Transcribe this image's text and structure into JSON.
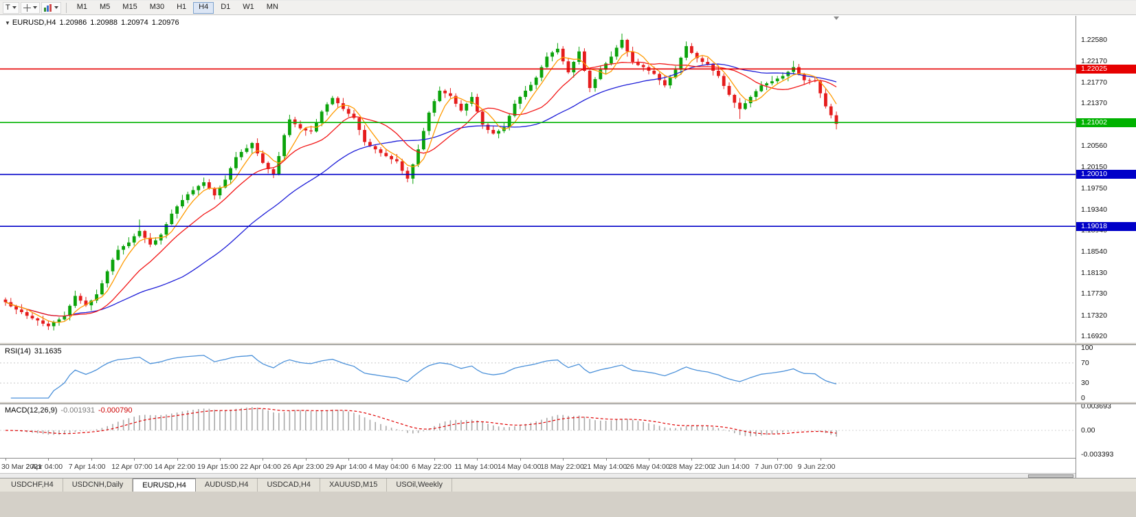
{
  "icons": {
    "collapse_triangle": "▼"
  },
  "toolbar": {
    "t_label": "T",
    "timeframes": [
      "M1",
      "M5",
      "M15",
      "M30",
      "H1",
      "H4",
      "D1",
      "W1",
      "MN"
    ],
    "active_timeframe": "H4"
  },
  "chart_header": {
    "symbol": "EURUSD,H4",
    "open": "1.20986",
    "high": "1.20988",
    "low": "1.20974",
    "close": "1.20976"
  },
  "rsi_header": {
    "label": "RSI(14)",
    "value": "31.1635"
  },
  "macd_header": {
    "label": "MACD(12,26,9)",
    "main_value": "-0.001931",
    "signal_value": "-0.000790"
  },
  "tabs": {
    "items": [
      {
        "label": "USDCHF,H4"
      },
      {
        "label": "USDCNH,Daily"
      },
      {
        "label": "EURUSD,H4"
      },
      {
        "label": "AUDUSD,H4"
      },
      {
        "label": "USDCAD,H4"
      },
      {
        "label": "XAUUSD,M15"
      },
      {
        "label": "USOil,Weekly"
      }
    ],
    "active": "EURUSD,H4"
  },
  "chart_data": {
    "type": "candlestick",
    "symbol": "EURUSD",
    "timeframe": "H4",
    "price_axis": {
      "min": 1.1692,
      "max": 1.2258,
      "labels": [
        "1.22580",
        "1.22170",
        "1.21770",
        "1.21370",
        "1.20560",
        "1.20150",
        "1.19750",
        "1.19340",
        "1.18940",
        "1.18540",
        "1.18130",
        "1.17730",
        "1.17320",
        "1.16920"
      ]
    },
    "hlines": [
      {
        "price": 1.22025,
        "label": "1.22025",
        "color": "#e60000"
      },
      {
        "price": 1.21002,
        "label": "1.21002",
        "color": "#00b200"
      },
      {
        "price": 1.2001,
        "label": "1.20010",
        "color": "#0000c8"
      },
      {
        "price": 1.19018,
        "label": "1.19018",
        "color": "#0000c8"
      }
    ],
    "candles": {
      "first_open": 1.1762,
      "closes": [
        1.1757,
        1.1749,
        1.1743,
        1.1738,
        1.1731,
        1.1726,
        1.1722,
        1.1716,
        1.1711,
        1.1719,
        1.1724,
        1.1731,
        1.175,
        1.1769,
        1.176,
        1.1751,
        1.176,
        1.1772,
        1.1793,
        1.1816,
        1.1838,
        1.1857,
        1.1864,
        1.1871,
        1.1883,
        1.1893,
        1.188,
        1.1867,
        1.1875,
        1.1886,
        1.1906,
        1.1926,
        1.194,
        1.1952,
        1.1963,
        1.1971,
        1.1979,
        1.1986,
        1.1974,
        1.1961,
        1.1976,
        1.1991,
        1.2013,
        1.2034,
        1.2044,
        1.2051,
        1.2061,
        1.2041,
        1.2023,
        1.2011,
        1.2001,
        1.2036,
        1.2076,
        1.2106,
        1.2097,
        1.2089,
        1.2085,
        1.2083,
        1.2101,
        1.2121,
        1.2135,
        1.2147,
        1.2137,
        1.2126,
        1.2117,
        1.2109,
        1.2086,
        1.2063,
        1.2055,
        1.2049,
        1.2042,
        1.2036,
        1.203,
        1.2026,
        1.2008,
        1.1993,
        1.202,
        1.2049,
        1.2084,
        1.2119,
        1.2141,
        1.2161,
        1.2156,
        1.2151,
        1.2136,
        1.2123,
        1.2136,
        1.2149,
        1.2121,
        1.2096,
        1.2086,
        1.2079,
        1.2084,
        1.2091,
        1.2113,
        1.2136,
        1.2149,
        1.2161,
        1.2172,
        1.2186,
        1.2206,
        1.2226,
        1.2234,
        1.2241,
        1.2217,
        1.2196,
        1.2216,
        1.2236,
        1.2199,
        1.2166,
        1.2183,
        1.2201,
        1.2213,
        1.2226,
        1.2243,
        1.2258,
        1.2236,
        1.2216,
        1.221,
        1.2206,
        1.2199,
        1.2193,
        1.2181,
        1.2171,
        1.2186,
        1.2201,
        1.2224,
        1.2246,
        1.2233,
        1.2223,
        1.2216,
        1.2211,
        1.2199,
        1.2189,
        1.217,
        1.2153,
        1.2138,
        1.2126,
        1.2137,
        1.2149,
        1.216,
        1.2171,
        1.2175,
        1.2179,
        1.2184,
        1.2189,
        1.2197,
        1.2206,
        1.2192,
        1.2181,
        1.218,
        1.2179,
        1.2156,
        1.2131,
        1.2114,
        1.20976
      ],
      "wick_high_pattern": [
        0.0004,
        0.0008,
        0.0003,
        0.001,
        0.0005,
        0.0007,
        0.0002,
        0.0009,
        0.0006,
        0.0003
      ],
      "wick_low_pattern": [
        0.0007,
        0.0002,
        0.0009,
        0.0004,
        0.0006,
        0.0003,
        0.001,
        0.0005,
        0.0002,
        0.0008
      ],
      "high_overrides": [
        [
          25,
          1.1915
        ],
        [
          53,
          1.2115
        ],
        [
          61,
          1.2151
        ],
        [
          103,
          1.2252
        ],
        [
          115,
          1.227
        ],
        [
          147,
          1.2218
        ]
      ],
      "low_overrides": [
        [
          8,
          1.1704
        ],
        [
          9,
          1.1703
        ],
        [
          67,
          1.2056
        ],
        [
          75,
          1.1986
        ],
        [
          137,
          1.2107
        ],
        [
          155,
          1.2087
        ]
      ]
    },
    "moving_averages": [
      {
        "period": 34,
        "color": "#1d1dd8"
      },
      {
        "period": 13,
        "color": "#f21616"
      },
      {
        "period": 5,
        "color": "#ff9a00"
      }
    ],
    "rsi": {
      "period": 14,
      "levels": [
        100,
        70,
        30,
        0
      ],
      "color": "#4a90d9"
    },
    "macd": {
      "fast": 12,
      "slow": 26,
      "signal": 9,
      "axis_labels": [
        "0.003693",
        "0.00",
        "-0.003393"
      ],
      "histogram_color": "#a9a9a9",
      "signal_color": "#e00000"
    },
    "time_labels": [
      "30 Mar 2021",
      "2 Apr 04:00",
      "7 Apr 14:00",
      "12 Apr 07:00",
      "14 Apr 22:00",
      "19 Apr 15:00",
      "22 Apr 04:00",
      "26 Apr 23:00",
      "29 Apr 14:00",
      "4 May 04:00",
      "6 May 22:00",
      "11 May 14:00",
      "14 May 04:00",
      "18 May 22:00",
      "21 May 14:00",
      "26 May 04:00",
      "28 May 22:00",
      "2 Jun 14:00",
      "7 Jun 07:00",
      "9 Jun 22:00"
    ],
    "colors": {
      "up": "#0ba30b",
      "down": "#e51c1c",
      "background": "#ffffff"
    }
  }
}
